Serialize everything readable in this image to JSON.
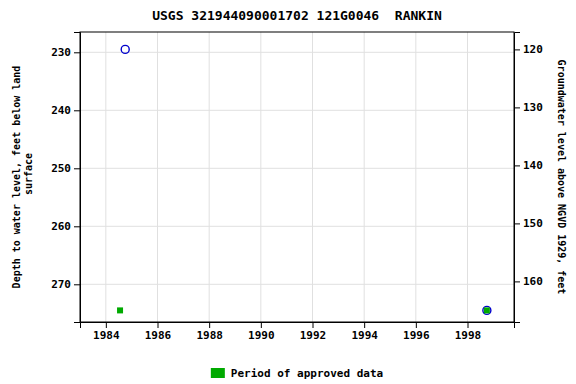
{
  "chart_data": {
    "type": "scatter",
    "title": "USGS 321944090001702 121G0046  RANKIN",
    "y_label": "Depth to water level, feet below land\n surface",
    "y2_label": "Groundwater level above NGVD 1929, feet",
    "xlim": [
      1983.0,
      1999.8
    ],
    "xticks": [
      1984,
      1986,
      1988,
      1990,
      1992,
      1994,
      1996,
      1998
    ],
    "ylim": [
      276.5,
      226.5
    ],
    "yticks": [
      230,
      240,
      250,
      260,
      270
    ],
    "y2lim": [
      167.0,
      117.0
    ],
    "y2ticks": [
      120,
      130,
      140,
      150,
      160
    ],
    "grid": true,
    "legend": "bottom",
    "series": [
      {
        "color": "#0000cc",
        "marker": "open-circle",
        "x": [
          1984.75,
          1998.75
        ],
        "values": [
          229.5,
          274.5
        ]
      },
      {
        "name": "Period of approved data",
        "color": "#00aa00",
        "marker": "square",
        "x": [
          1984.55,
          1998.75
        ],
        "values": [
          274.5,
          274.5
        ]
      }
    ]
  }
}
